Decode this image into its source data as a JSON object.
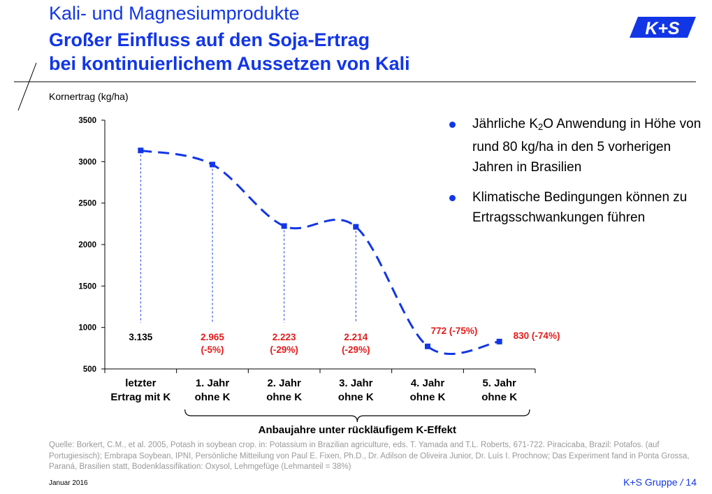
{
  "header": {
    "line1": "Kali- und Magnesiumprodukte",
    "line2": "Großer Einfluss auf den Soja-Ertrag",
    "line3": "bei kontinuierlichem Aussetzen von Kali",
    "logo_text": "K+S"
  },
  "bullets": {
    "b1_prefix": "Jährliche K",
    "b1_sub": "2",
    "b1_rest": "O Anwendung in Höhe von rund 80 kg/ha in den 5 vorherigen Jahren in Brasilien",
    "b2": "Klimatische Bedingungen können zu Ertragsschwankungen führen"
  },
  "source_text": "Quelle: Borkert, C.M., et al. 2005, Potash in soybean crop. in: Potassium in Brazilian agriculture, eds. T. Yamada and T.L. Roberts, 671-722. Piracicaba, Brazil: Potafos. (auf Portugiesisch); Embrapa Soybean, IPNI, Persönliche Mitteilung von Paul E. Fixen, Ph.D., Dr. Adilson de Oliveira Junior, Dr. Luís I. Prochnow; Das Experiment fand in Ponta Grossa, Paraná, Brasilien statt, Bodenklassifikation: Oxysol, Lehmgefüge (Lehmanteil = 38%)",
  "footer": {
    "date": "Januar 2016",
    "company": "K+S Gruppe",
    "separator": "/",
    "page": "14"
  },
  "colors": {
    "blue": "#1236e6",
    "red": "#e31b1b",
    "black": "#000000"
  },
  "chart_data": {
    "type": "line",
    "ylabel": "Kornertrag (kg/ha)",
    "ylim": [
      500,
      3500
    ],
    "yticks": [
      500,
      1000,
      1500,
      2000,
      2500,
      3000,
      3500
    ],
    "categories": [
      [
        "letzter",
        "Ertrag mit K"
      ],
      [
        "1. Jahr",
        "ohne K"
      ],
      [
        "2. Jahr",
        "ohne K"
      ],
      [
        "3. Jahr",
        "ohne K"
      ],
      [
        "4. Jahr",
        "ohne K"
      ],
      [
        "5. Jahr",
        "ohne K"
      ]
    ],
    "values": [
      3135,
      2965,
      2223,
      2214,
      772,
      830
    ],
    "data_labels": [
      [
        "3.135"
      ],
      [
        "2.965",
        "(-5%)"
      ],
      [
        "2.223",
        "(-29%)"
      ],
      [
        "2.214",
        "(-29%)"
      ],
      [
        "772 (-75%)"
      ],
      [
        "830 (-74%)"
      ]
    ],
    "group_label": "Anbaujahre unter rückläufigem K-Effekt",
    "group_start": 1,
    "group_end": 5
  }
}
